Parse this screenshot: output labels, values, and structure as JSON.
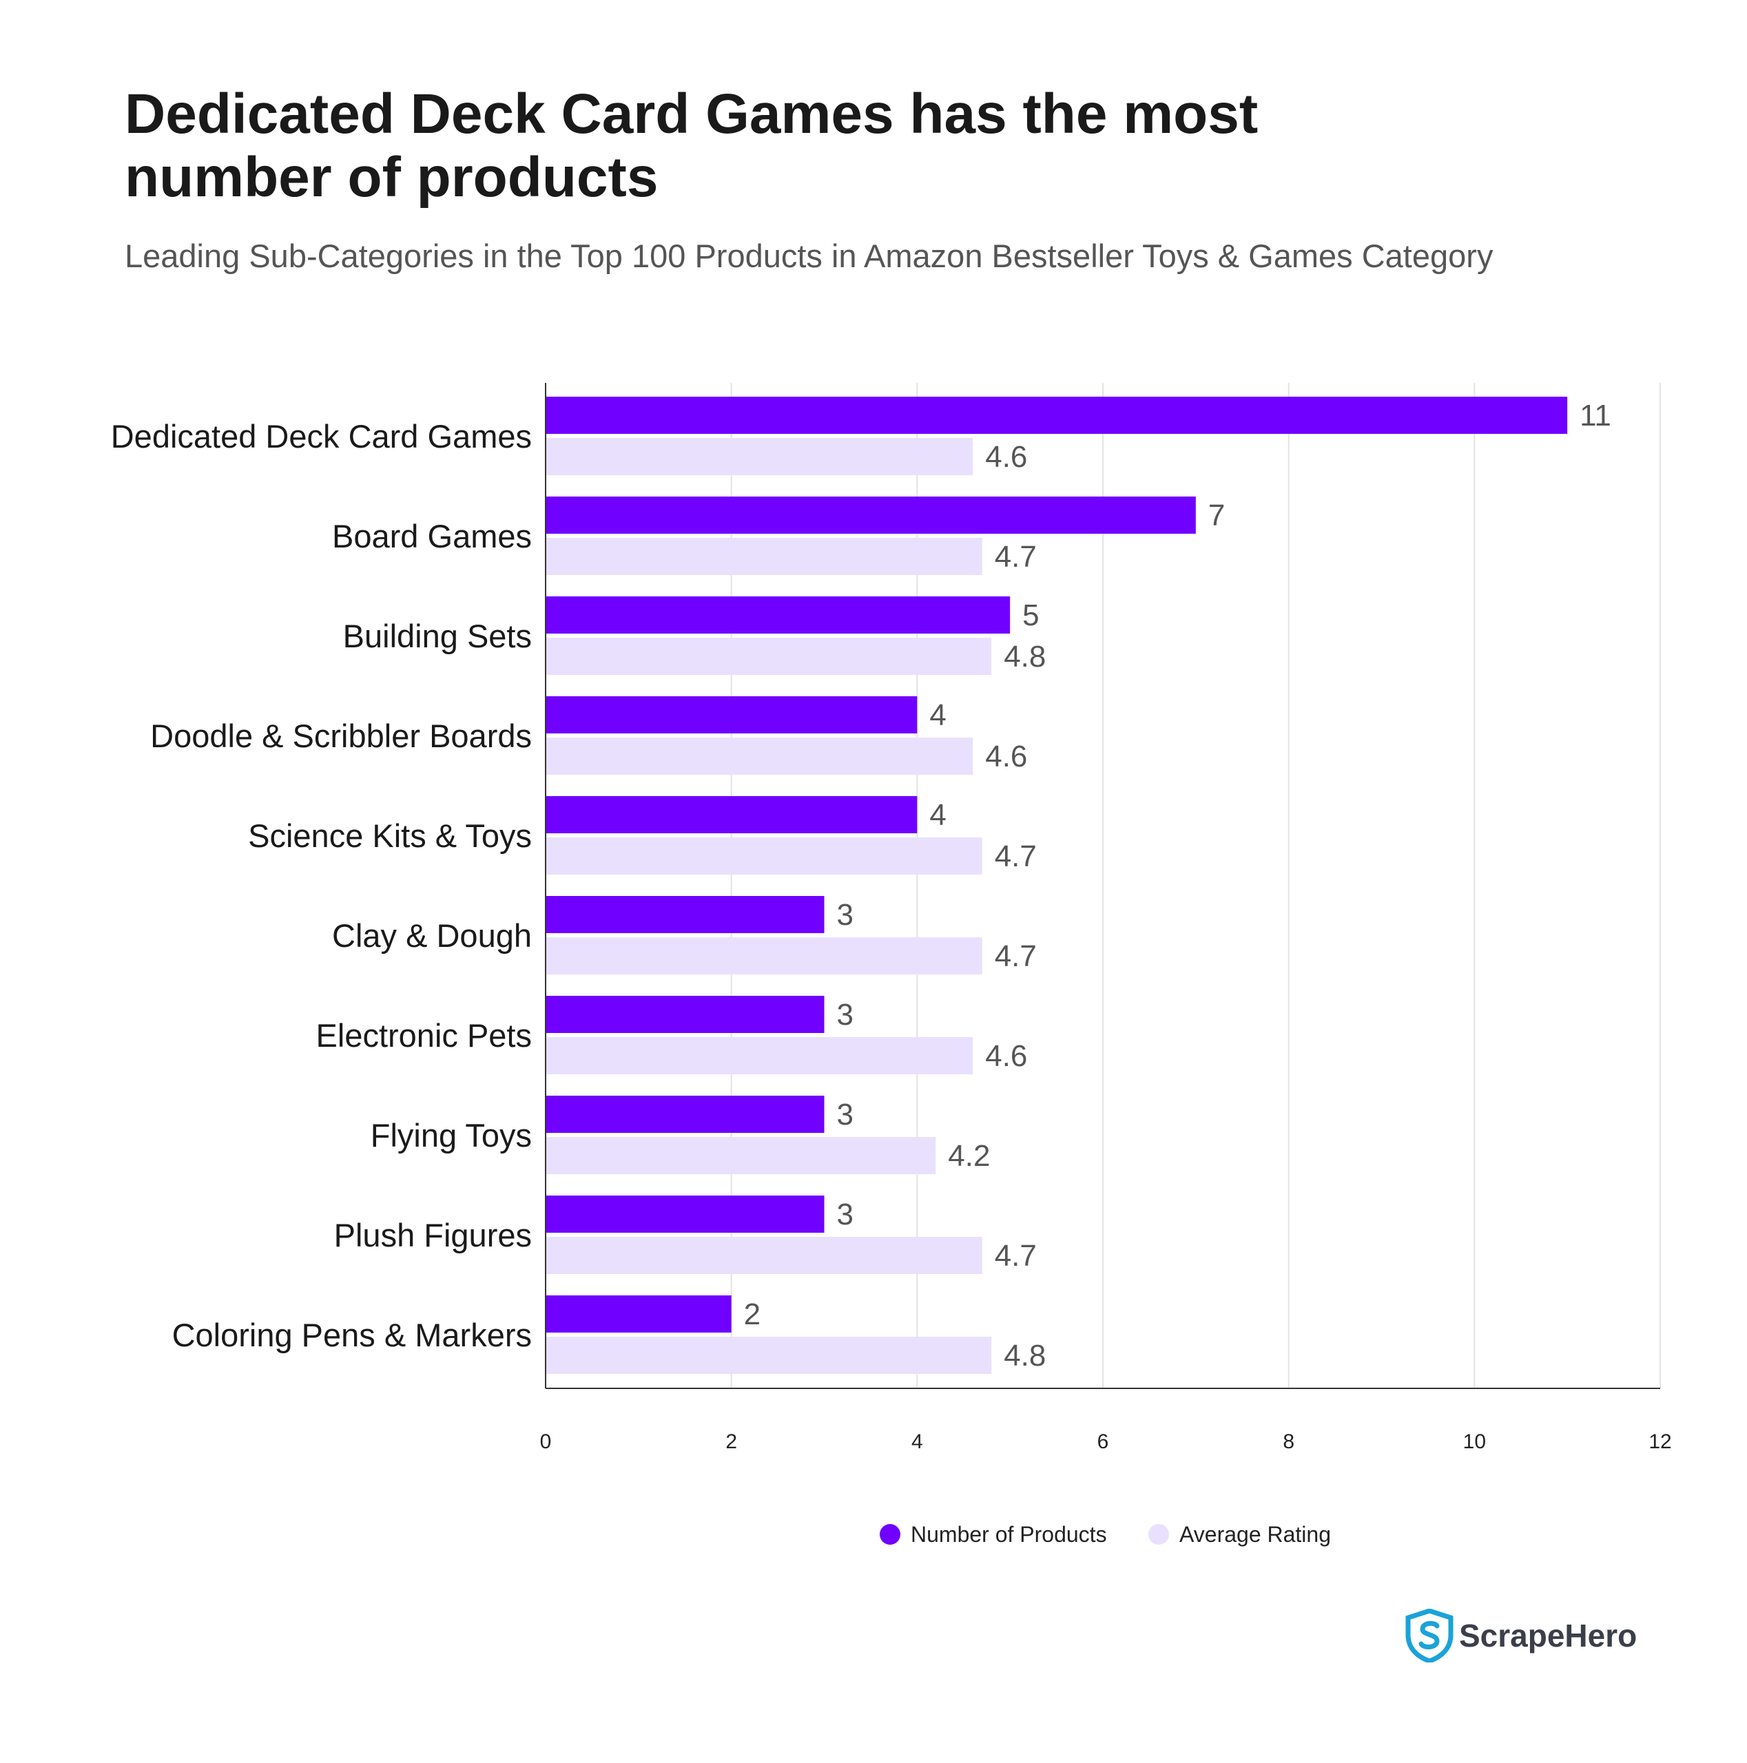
{
  "header": {
    "title": "Dedicated Deck Card Games has the most number of products",
    "subtitle": "Leading Sub-Categories in the Top 100 Products in Amazon Bestseller Toys & Games Category"
  },
  "chart_data": {
    "type": "bar",
    "orientation": "horizontal",
    "categories": [
      "Dedicated Deck Card Games",
      "Board Games",
      "Building Sets",
      "Doodle & Scribbler Boards",
      "Science Kits & Toys",
      "Clay & Dough",
      "Electronic Pets",
      "Flying Toys",
      "Plush Figures",
      "Coloring Pens & Markers"
    ],
    "series": [
      {
        "name": "Number of Products",
        "color": "#7000FF",
        "values": [
          11,
          7,
          5,
          4,
          4,
          3,
          3,
          3,
          3,
          2
        ],
        "labels": [
          "11",
          "7",
          "5",
          "4",
          "4",
          "3",
          "3",
          "3",
          "3",
          "2"
        ]
      },
      {
        "name": "Average Rating",
        "color": "#E9E0FD",
        "values": [
          4.6,
          4.7,
          4.8,
          4.6,
          4.7,
          4.7,
          4.6,
          4.2,
          4.7,
          4.8
        ],
        "labels": [
          "4.6",
          "4.7",
          "4.8",
          "4.6",
          "4.7",
          "4.7",
          "4.6",
          "4.2",
          "4.7",
          "4.8"
        ]
      }
    ],
    "xlim": [
      0,
      12
    ],
    "xticks": [
      "0",
      "2",
      "4",
      "6",
      "8",
      "10",
      "12"
    ],
    "xlabel": "",
    "ylabel": "",
    "grid": "vertical",
    "legend_position": "bottom-center"
  },
  "brand": {
    "name": "ScrapeHero",
    "logo_icon": "shield-s-icon",
    "color": "#1aa3d9"
  }
}
